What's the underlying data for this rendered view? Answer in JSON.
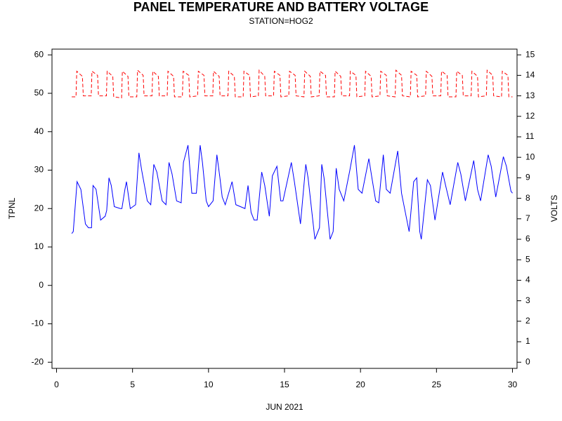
{
  "chart_data": {
    "type": "line",
    "title": "PANEL TEMPERATURE AND BATTERY VOLTAGE",
    "subtitle": "STATION=HOG2",
    "x_label": "JUN 2021",
    "y_label": "TPNL",
    "y2_label": "VOLTS",
    "xlim": [
      -0.3,
      30.3
    ],
    "xticks": [
      0,
      5,
      10,
      15,
      20,
      25,
      30
    ],
    "ylim": [
      -21.6,
      61.5
    ],
    "yticks": [
      -20,
      -10,
      0,
      10,
      20,
      30,
      40,
      50,
      60
    ],
    "y2lim": [
      -0.3,
      15.28
    ],
    "y2ticks": [
      0,
      1,
      2,
      3,
      4,
      5,
      6,
      7,
      8,
      9,
      10,
      11,
      12,
      13,
      14,
      15
    ],
    "series": [
      {
        "name": "TPNL",
        "color": "#0000ff",
        "axis": "y",
        "dash": false,
        "x": [
          1.0,
          1.1,
          1.35,
          1.6,
          1.9,
          2.1,
          2.3,
          2.4,
          2.6,
          2.9,
          3.2,
          3.3,
          3.45,
          3.6,
          3.8,
          4.2,
          4.3,
          4.5,
          4.6,
          4.85,
          5.2,
          5.42,
          5.6,
          5.97,
          6.2,
          6.4,
          6.6,
          6.95,
          7.2,
          7.4,
          7.6,
          7.9,
          8.2,
          8.35,
          8.65,
          8.9,
          9.2,
          9.45,
          9.6,
          9.85,
          10.0,
          10.3,
          10.55,
          10.75,
          10.9,
          11.1,
          11.4,
          11.55,
          11.8,
          12.1,
          12.4,
          12.6,
          12.8,
          13.0,
          13.2,
          13.5,
          13.7,
          14.0,
          14.2,
          14.5,
          14.75,
          14.9,
          15.45,
          15.65,
          16.05,
          16.4,
          16.55,
          17.0,
          17.3,
          17.45,
          17.6,
          18.0,
          18.2,
          18.4,
          18.6,
          18.9,
          19.3,
          19.6,
          19.85,
          20.1,
          20.55,
          20.75,
          21.0,
          21.2,
          21.5,
          21.7,
          21.95,
          22.45,
          22.7,
          23.0,
          23.2,
          23.5,
          23.7,
          23.9,
          24.0,
          24.4,
          24.6,
          24.9,
          25.4,
          25.6,
          25.9,
          26.4,
          26.6,
          26.9,
          27.45,
          27.7,
          27.9,
          28.4,
          28.6,
          28.9,
          29.4,
          29.6,
          29.9,
          30.0
        ],
        "values": [
          13.5,
          14,
          27,
          25,
          16,
          15,
          15,
          26,
          25,
          17,
          18,
          19.5,
          28,
          26,
          20.5,
          20,
          20,
          25,
          27,
          20,
          21,
          34.5,
          30,
          22,
          21,
          31.5,
          29.5,
          22,
          21,
          32,
          29,
          22,
          21.5,
          32,
          36.5,
          24,
          24,
          36.5,
          32,
          22,
          20.5,
          22,
          34,
          28,
          23,
          21,
          25,
          27,
          21,
          20.5,
          20,
          26,
          19,
          17,
          17,
          29.5,
          26,
          18,
          28.5,
          31,
          22,
          22,
          32,
          27,
          16,
          31.5,
          28,
          12,
          15,
          31.5,
          28,
          12,
          14,
          30.5,
          25,
          22,
          30,
          36.5,
          25,
          24,
          33,
          28,
          22,
          21.5,
          34,
          25,
          24,
          35,
          24,
          18,
          14,
          27,
          28,
          14,
          12,
          27.5,
          26,
          17,
          29.5,
          26,
          21,
          32,
          29,
          22,
          32.5,
          25,
          22,
          34,
          31,
          23,
          33.5,
          31,
          24.5,
          24
        ]
      },
      {
        "name": "VOLTS",
        "color": "#ff0000",
        "axis": "y2",
        "dash": true,
        "x": [
          1.0,
          1.28,
          1.33,
          1.7,
          1.76,
          2.28,
          2.33,
          2.7,
          2.76,
          3.28,
          3.33,
          3.7,
          3.76,
          4.28,
          4.33,
          4.7,
          4.76,
          5.28,
          5.33,
          5.7,
          5.76,
          6.28,
          6.33,
          6.7,
          6.76,
          7.28,
          7.33,
          7.7,
          7.76,
          8.28,
          8.33,
          8.7,
          8.76,
          9.28,
          9.33,
          9.7,
          9.76,
          10.28,
          10.33,
          10.7,
          10.76,
          11.28,
          11.33,
          11.7,
          11.76,
          12.28,
          12.33,
          12.7,
          12.76,
          13.28,
          13.33,
          13.7,
          13.76,
          14.28,
          14.33,
          14.7,
          14.76,
          15.28,
          15.33,
          15.7,
          15.76,
          16.28,
          16.33,
          16.7,
          16.76,
          17.28,
          17.33,
          17.7,
          17.76,
          18.28,
          18.33,
          18.7,
          18.76,
          19.28,
          19.33,
          19.7,
          19.76,
          20.28,
          20.33,
          20.7,
          20.76,
          21.28,
          21.33,
          21.7,
          21.76,
          22.28,
          22.33,
          22.7,
          22.76,
          23.28,
          23.33,
          23.7,
          23.76,
          24.28,
          24.33,
          24.7,
          24.76,
          25.28,
          25.33,
          25.7,
          25.76,
          26.28,
          26.33,
          26.7,
          26.76,
          27.28,
          27.33,
          27.7,
          27.76,
          28.28,
          28.33,
          28.7,
          28.76,
          29.28,
          29.33,
          29.7,
          29.76,
          30.0
        ],
        "values": [
          12.95,
          12.95,
          14.2,
          13.95,
          13.0,
          13.0,
          14.2,
          14.0,
          13.0,
          13.0,
          14.2,
          13.95,
          12.95,
          12.9,
          14.2,
          13.95,
          12.95,
          12.95,
          14.25,
          14.0,
          13.0,
          13.0,
          14.2,
          13.95,
          13.0,
          13.0,
          14.2,
          13.95,
          12.95,
          12.95,
          14.2,
          14.0,
          12.95,
          13.0,
          14.2,
          14.0,
          13.0,
          13.0,
          14.2,
          13.95,
          13.0,
          13.0,
          14.2,
          13.95,
          12.95,
          12.95,
          14.2,
          14.0,
          12.95,
          13.0,
          14.25,
          13.95,
          13.0,
          13.0,
          14.2,
          14.0,
          12.95,
          13.0,
          14.2,
          14.0,
          13.0,
          12.95,
          14.2,
          13.95,
          12.95,
          13.0,
          14.2,
          14.0,
          12.95,
          12.95,
          14.2,
          13.95,
          13.0,
          13.0,
          14.2,
          14.0,
          12.95,
          13.0,
          14.2,
          13.95,
          12.95,
          13.0,
          14.2,
          14.0,
          13.0,
          12.95,
          14.25,
          14.0,
          13.0,
          12.95,
          14.2,
          14.0,
          12.95,
          13.0,
          14.2,
          13.95,
          13.0,
          13.0,
          14.2,
          14.0,
          12.95,
          12.95,
          14.2,
          14.0,
          13.0,
          13.0,
          14.2,
          13.95,
          12.95,
          13.0,
          14.25,
          14.0,
          13.0,
          12.95,
          14.2,
          14.0,
          12.95,
          12.95
        ]
      }
    ]
  }
}
